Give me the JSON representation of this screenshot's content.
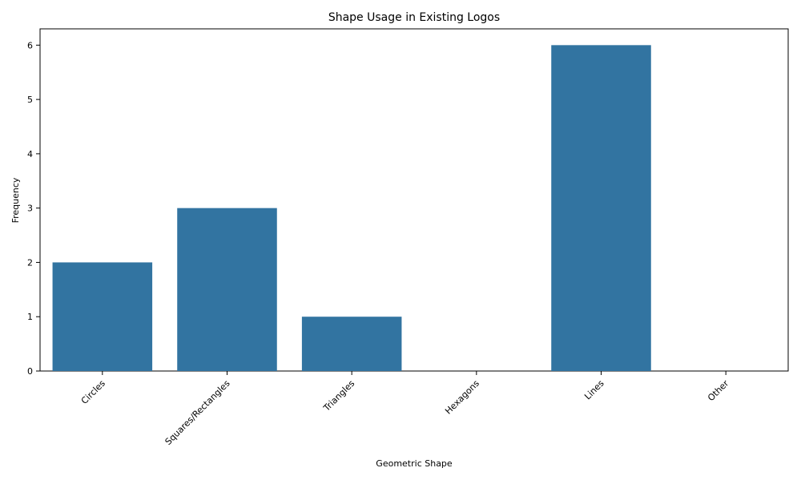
{
  "chart_data": {
    "type": "bar",
    "title": "Shape Usage in Existing Logos",
    "xlabel": "Geometric Shape",
    "ylabel": "Frequency",
    "categories": [
      "Circles",
      "Squares/Rectangles",
      "Triangles",
      "Hexagons",
      "Lines",
      "Other"
    ],
    "values": [
      2,
      3,
      1,
      0,
      6,
      0
    ],
    "ylim": [
      0,
      6.3
    ],
    "yticks": [
      "0",
      "1",
      "2",
      "3",
      "4",
      "5",
      "6"
    ],
    "grid": false,
    "bar_color": "#3274a1"
  }
}
